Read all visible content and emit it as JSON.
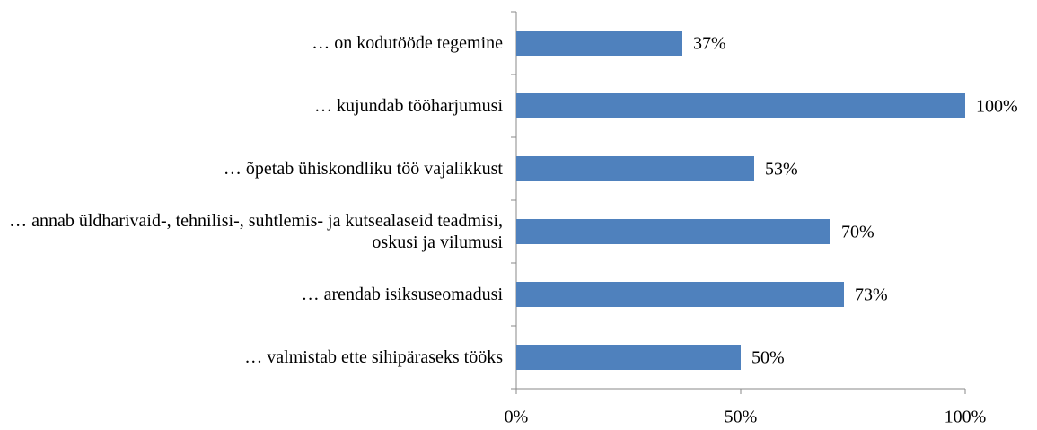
{
  "chart_data": {
    "type": "bar",
    "orientation": "horizontal",
    "categories": [
      "… on kodutööde tegemine",
      "… kujundab tööharjumusi",
      "… õpetab  ühiskondliku töö vajalikkust",
      "… annab üldharivaid-, tehnilisi-, suhtlemis- ja kutsealaseid teadmisi, oskusi ja vilumusi",
      "… arendab isiksuseomadusi",
      "… valmistab ette sihipäraseks tööks"
    ],
    "values": [
      37,
      100,
      53,
      70,
      73,
      50
    ],
    "value_labels": [
      "37%",
      "100%",
      "53%",
      "70%",
      "73%",
      "50%"
    ],
    "color": "#4f81bd",
    "xlim": [
      0,
      100
    ],
    "xticks": [
      {
        "value": 0,
        "label": "0%"
      },
      {
        "value": 50,
        "label": "50%"
      },
      {
        "value": 100,
        "label": "100%"
      }
    ],
    "grid": false
  }
}
